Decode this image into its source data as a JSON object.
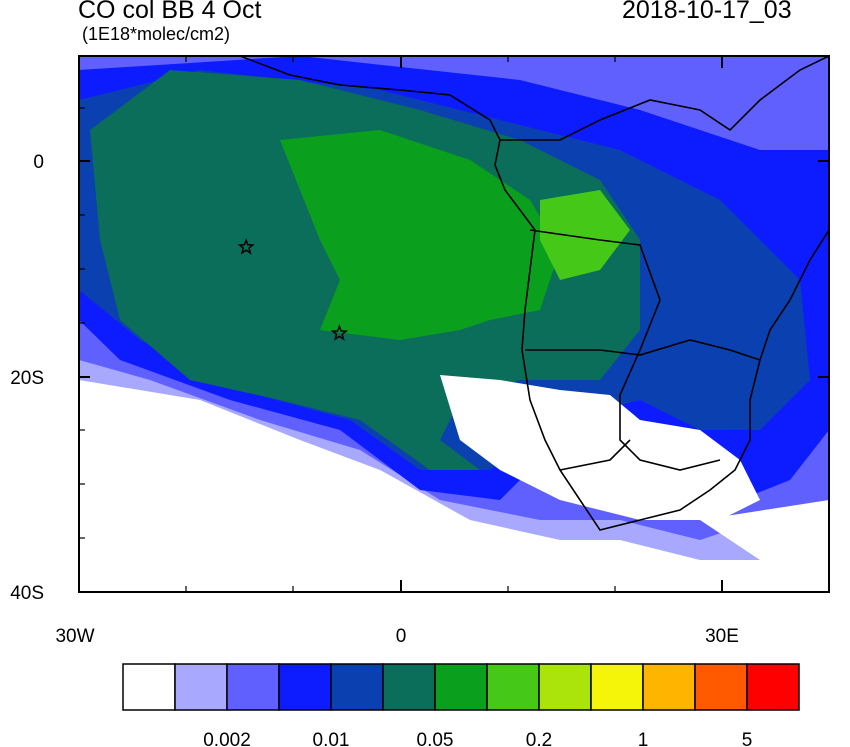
{
  "title": "CO col BB 4 Oct",
  "units": "(1E18*molec/cm2)",
  "timestamp": "2018-10-17_03",
  "axes": {
    "y_ticks": [
      "0",
      "20S",
      "40S"
    ],
    "x_ticks": [
      "30W",
      "0",
      "30E"
    ]
  },
  "markers": [
    {
      "name": "star-marker-1",
      "lon": -14.4,
      "lat": -8.0
    },
    {
      "name": "star-marker-2",
      "lon": -5.7,
      "lat": -16.0
    }
  ],
  "colorbar": {
    "colors": [
      "#ffffff",
      "#a8a8ff",
      "#6060ff",
      "#0c1cff",
      "#0a40b0",
      "#0a6e5a",
      "#0aa01e",
      "#46c818",
      "#aae40a",
      "#f5f50a",
      "#ffb400",
      "#ff5a00",
      "#ff0000"
    ],
    "labels": [
      "0.002",
      "0.01",
      "0.05",
      "0.2",
      "1",
      "5"
    ]
  },
  "colors": {
    "background_white": "#ffffff",
    "border": "#000000"
  }
}
